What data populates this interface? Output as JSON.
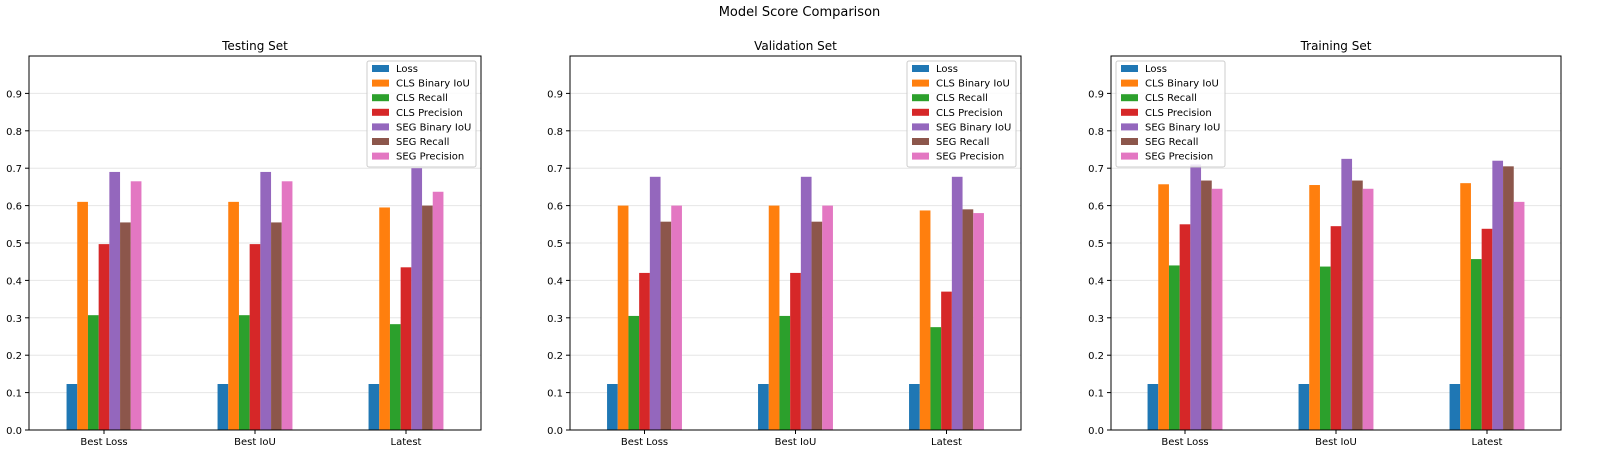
{
  "figure": {
    "suptitle": "Model Score Comparison"
  },
  "chart_data": [
    {
      "type": "bar",
      "title": "Testing Set",
      "xlabel": "",
      "ylabel": "",
      "categories": [
        "Best Loss",
        "Best IoU",
        "Latest"
      ],
      "ylim": [
        0,
        1.0
      ],
      "yticks": [
        0.0,
        0.1,
        0.2,
        0.3,
        0.4,
        0.5,
        0.6,
        0.7,
        0.8,
        0.9
      ],
      "grid": "y",
      "legend_position": "upper right",
      "series": [
        {
          "name": "Loss",
          "color": "#1f77b4",
          "values": [
            0.123,
            0.123,
            0.123
          ]
        },
        {
          "name": "CLS Binary IoU",
          "color": "#ff7f0e",
          "values": [
            0.61,
            0.61,
            0.595
          ]
        },
        {
          "name": "CLS Recall",
          "color": "#2ca02c",
          "values": [
            0.307,
            0.307,
            0.283
          ]
        },
        {
          "name": "CLS Precision",
          "color": "#d62728",
          "values": [
            0.497,
            0.497,
            0.435
          ]
        },
        {
          "name": "SEG Binary IoU",
          "color": "#9467bd",
          "values": [
            0.69,
            0.69,
            0.7
          ]
        },
        {
          "name": "SEG Recall",
          "color": "#8c564b",
          "values": [
            0.555,
            0.555,
            0.6
          ]
        },
        {
          "name": "SEG Precision",
          "color": "#e377c2",
          "values": [
            0.665,
            0.665,
            0.637
          ]
        }
      ]
    },
    {
      "type": "bar",
      "title": "Validation Set",
      "xlabel": "",
      "ylabel": "",
      "categories": [
        "Best Loss",
        "Best IoU",
        "Latest"
      ],
      "ylim": [
        0,
        1.0
      ],
      "yticks": [
        0.0,
        0.1,
        0.2,
        0.3,
        0.4,
        0.5,
        0.6,
        0.7,
        0.8,
        0.9
      ],
      "grid": "y",
      "legend_position": "upper right",
      "series": [
        {
          "name": "Loss",
          "color": "#1f77b4",
          "values": [
            0.123,
            0.123,
            0.123
          ]
        },
        {
          "name": "CLS Binary IoU",
          "color": "#ff7f0e",
          "values": [
            0.6,
            0.6,
            0.587
          ]
        },
        {
          "name": "CLS Recall",
          "color": "#2ca02c",
          "values": [
            0.305,
            0.305,
            0.275
          ]
        },
        {
          "name": "CLS Precision",
          "color": "#d62728",
          "values": [
            0.42,
            0.42,
            0.37
          ]
        },
        {
          "name": "SEG Binary IoU",
          "color": "#9467bd",
          "values": [
            0.677,
            0.677,
            0.677
          ]
        },
        {
          "name": "SEG Recall",
          "color": "#8c564b",
          "values": [
            0.557,
            0.557,
            0.59
          ]
        },
        {
          "name": "SEG Precision",
          "color": "#e377c2",
          "values": [
            0.6,
            0.6,
            0.58
          ]
        }
      ]
    },
    {
      "type": "bar",
      "title": "Training Set",
      "xlabel": "",
      "ylabel": "",
      "categories": [
        "Best Loss",
        "Best IoU",
        "Latest"
      ],
      "ylim": [
        0,
        1.0
      ],
      "yticks": [
        0.0,
        0.1,
        0.2,
        0.3,
        0.4,
        0.5,
        0.6,
        0.7,
        0.8,
        0.9
      ],
      "grid": "y",
      "legend_position": "upper left",
      "series": [
        {
          "name": "Loss",
          "color": "#1f77b4",
          "values": [
            0.123,
            0.123,
            0.123
          ]
        },
        {
          "name": "CLS Binary IoU",
          "color": "#ff7f0e",
          "values": [
            0.657,
            0.655,
            0.66
          ]
        },
        {
          "name": "CLS Recall",
          "color": "#2ca02c",
          "values": [
            0.44,
            0.437,
            0.457
          ]
        },
        {
          "name": "CLS Precision",
          "color": "#d62728",
          "values": [
            0.55,
            0.545,
            0.538
          ]
        },
        {
          "name": "SEG Binary IoU",
          "color": "#9467bd",
          "values": [
            0.71,
            0.725,
            0.72
          ]
        },
        {
          "name": "SEG Recall",
          "color": "#8c564b",
          "values": [
            0.667,
            0.667,
            0.705
          ]
        },
        {
          "name": "SEG Precision",
          "color": "#e377c2",
          "values": [
            0.645,
            0.645,
            0.61
          ]
        }
      ]
    }
  ]
}
